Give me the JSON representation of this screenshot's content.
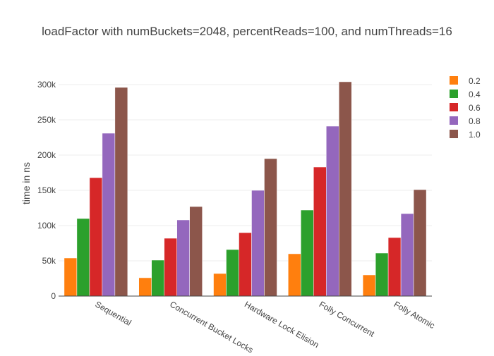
{
  "chart_data": {
    "type": "bar",
    "title": "loadFactor with numBuckets=2048, percentReads=100, and numThreads=16",
    "xlabel": "",
    "ylabel": "time in ns",
    "ylim": [
      0,
      320000
    ],
    "yticks": [
      {
        "value": 0,
        "label": "0"
      },
      {
        "value": 50000,
        "label": "50k"
      },
      {
        "value": 100000,
        "label": "100k"
      },
      {
        "value": 150000,
        "label": "150k"
      },
      {
        "value": 200000,
        "label": "200k"
      },
      {
        "value": 250000,
        "label": "250k"
      },
      {
        "value": 300000,
        "label": "300k"
      }
    ],
    "grid": true,
    "legend_position": "right",
    "categories": [
      "Sequential",
      "Concurrent Bucket Locks",
      "Hardware Lock Elision",
      "Folly Concurrent",
      "Folly Atomic"
    ],
    "series": [
      {
        "name": "0.2",
        "color": "#ff7f0e",
        "values": [
          54000,
          26000,
          32000,
          60000,
          30000
        ]
      },
      {
        "name": "0.4",
        "color": "#2ca02c",
        "values": [
          110000,
          51000,
          66000,
          122000,
          61000
        ]
      },
      {
        "name": "0.6",
        "color": "#d62728",
        "values": [
          168000,
          82000,
          90000,
          183000,
          83000
        ]
      },
      {
        "name": "0.8",
        "color": "#9467bd",
        "values": [
          231000,
          108000,
          150000,
          241000,
          117000
        ]
      },
      {
        "name": "1.0",
        "color": "#8c564b",
        "values": [
          296000,
          127000,
          195000,
          304000,
          151000
        ]
      }
    ]
  }
}
